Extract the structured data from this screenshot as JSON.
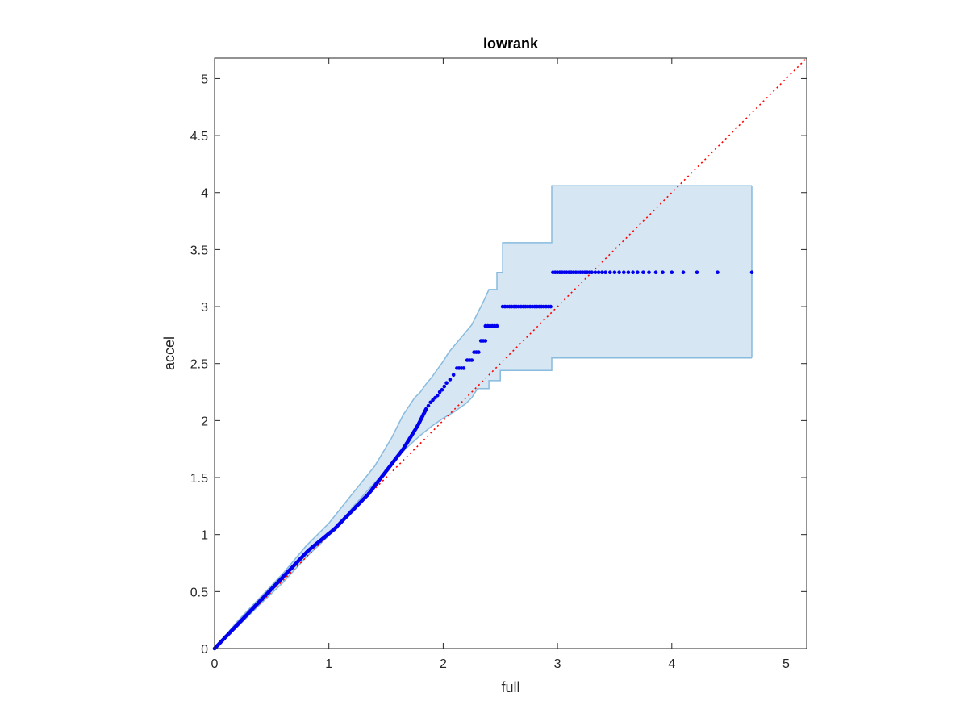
{
  "chart_data": {
    "type": "scatter",
    "title": "lowrank",
    "xlabel": "full",
    "ylabel": "accel",
    "xlim": [
      0,
      5.18
    ],
    "ylim": [
      0,
      5.18
    ],
    "xticks": [
      0,
      1,
      2,
      3,
      4,
      5
    ],
    "yticks": [
      0,
      0.5,
      1,
      1.5,
      2,
      2.5,
      3,
      3.5,
      4,
      4.5,
      5
    ],
    "xtick_labels": [
      "0",
      "1",
      "2",
      "3",
      "4",
      "5"
    ],
    "ytick_labels": [
      "0",
      "0.5",
      "1",
      "1.5",
      "2",
      "2.5",
      "3",
      "3.5",
      "4",
      "4.5",
      "5"
    ],
    "grid": false,
    "colors": {
      "points": "#0000ee",
      "band_fill": "#d6e6f3",
      "band_edge": "#88bbdd",
      "reference": "#ff0000",
      "axes": "#262626"
    },
    "series": [
      {
        "kind": "points",
        "segments": [
          {
            "from": [
              0.0,
              0.0
            ],
            "to": [
              0.82,
              0.86
            ]
          },
          {
            "from": [
              0.82,
              0.86
            ],
            "to": [
              1.05,
              1.05
            ]
          },
          {
            "from": [
              1.05,
              1.05
            ],
            "to": [
              1.35,
              1.36
            ]
          },
          {
            "from": [
              1.35,
              1.36
            ],
            "to": [
              1.65,
              1.75
            ]
          },
          {
            "from": [
              1.65,
              1.75
            ],
            "to": [
              1.78,
              1.96
            ]
          },
          {
            "from": [
              1.78,
              1.96
            ],
            "to": [
              1.85,
              2.1
            ]
          }
        ],
        "points": [
          [
            1.87,
            2.13
          ],
          [
            1.89,
            2.16
          ],
          [
            1.91,
            2.18
          ],
          [
            1.93,
            2.2
          ],
          [
            1.95,
            2.22
          ],
          [
            1.97,
            2.25
          ],
          [
            1.99,
            2.27
          ],
          [
            2.01,
            2.3
          ],
          [
            2.03,
            2.33
          ],
          [
            2.06,
            2.36
          ],
          [
            2.09,
            2.4
          ],
          [
            2.11,
            2.42
          ],
          [
            2.13,
            2.46
          ],
          [
            2.15,
            2.46
          ],
          [
            2.17,
            2.46
          ],
          [
            2.19,
            2.46
          ],
          [
            2.23,
            2.53
          ],
          [
            2.25,
            2.53
          ],
          [
            2.27,
            2.53
          ],
          [
            2.29,
            2.53
          ],
          [
            2.31,
            2.6
          ],
          [
            2.33,
            2.6
          ],
          [
            2.35,
            2.6
          ],
          [
            2.37,
            2.6
          ],
          [
            2.39,
            2.6
          ],
          [
            2.41,
            2.7
          ],
          [
            2.43,
            2.7
          ],
          [
            2.45,
            2.7
          ],
          [
            2.47,
            2.7
          ],
          [
            2.49,
            2.7
          ],
          [
            2.51,
            2.7
          ],
          [
            2.53,
            2.7
          ],
          [
            2.55,
            2.7
          ],
          [
            2.57,
            2.7
          ],
          [
            2.59,
            2.7
          ],
          [
            2.61,
            2.7
          ],
          [
            2.63,
            2.7
          ],
          [
            2.65,
            2.7
          ],
          [
            2.67,
            2.7
          ],
          [
            2.69,
            2.7
          ],
          [
            2.71,
            2.7
          ],
          [
            2.73,
            2.7
          ],
          [
            2.75,
            2.7
          ],
          [
            2.77,
            2.7
          ],
          [
            2.79,
            2.7
          ],
          [
            2.81,
            2.7
          ],
          [
            2.83,
            2.7
          ],
          [
            2.85,
            2.7
          ],
          [
            2.87,
            2.7
          ],
          [
            2.89,
            2.7
          ],
          [
            2.91,
            2.7
          ],
          [
            2.93,
            2.7
          ],
          [
            2.95,
            2.7
          ]
        ],
        "step_points": [
          {
            "y": 2.83,
            "x": [
              2.37,
              2.39,
              2.41,
              2.43,
              2.45,
              2.47
            ]
          },
          {
            "y": 3.0,
            "x": [
              2.52,
              2.54,
              2.56,
              2.58,
              2.6,
              2.62,
              2.64,
              2.66,
              2.68,
              2.7,
              2.72,
              2.74,
              2.76,
              2.78,
              2.8,
              2.82,
              2.84,
              2.86,
              2.88,
              2.9,
              2.92,
              2.94
            ]
          },
          {
            "y": 3.3,
            "x": [
              2.96,
              2.98,
              3.0,
              3.02,
              3.04,
              3.06,
              3.08,
              3.1,
              3.12,
              3.14,
              3.16,
              3.18,
              3.2,
              3.22,
              3.24,
              3.26,
              3.28,
              3.3,
              3.33,
              3.36,
              3.39,
              3.42,
              3.46,
              3.5,
              3.54,
              3.58,
              3.62,
              3.66,
              3.7,
              3.75,
              3.8,
              3.86,
              3.92,
              4.0,
              4.1,
              4.22,
              4.4,
              4.7
            ]
          }
        ]
      },
      {
        "kind": "band",
        "upper": [
          [
            0.0,
            0.0
          ],
          [
            0.2,
            0.24
          ],
          [
            0.4,
            0.45
          ],
          [
            0.6,
            0.66
          ],
          [
            0.8,
            0.9
          ],
          [
            1.0,
            1.1
          ],
          [
            1.2,
            1.35
          ],
          [
            1.4,
            1.6
          ],
          [
            1.55,
            1.85
          ],
          [
            1.65,
            2.05
          ],
          [
            1.75,
            2.2
          ],
          [
            1.8,
            2.25
          ],
          [
            1.85,
            2.32
          ],
          [
            1.9,
            2.38
          ],
          [
            1.95,
            2.45
          ],
          [
            2.0,
            2.52
          ],
          [
            2.05,
            2.6
          ],
          [
            2.1,
            2.66
          ],
          [
            2.15,
            2.72
          ],
          [
            2.2,
            2.78
          ],
          [
            2.25,
            2.84
          ],
          [
            2.3,
            2.94
          ],
          [
            2.35,
            3.04
          ],
          [
            2.4,
            3.15
          ],
          [
            2.47,
            3.15
          ],
          [
            2.47,
            3.3
          ],
          [
            2.52,
            3.3
          ],
          [
            2.52,
            3.56
          ],
          [
            2.95,
            3.56
          ],
          [
            2.95,
            4.06
          ],
          [
            4.7,
            4.06
          ]
        ],
        "lower": [
          [
            4.7,
            2.55
          ],
          [
            2.95,
            2.55
          ],
          [
            2.95,
            2.44
          ],
          [
            2.5,
            2.44
          ],
          [
            2.5,
            2.35
          ],
          [
            2.4,
            2.35
          ],
          [
            2.4,
            2.28
          ],
          [
            2.3,
            2.28
          ],
          [
            2.25,
            2.2
          ],
          [
            2.2,
            2.15
          ],
          [
            2.1,
            2.08
          ],
          [
            2.0,
            2.02
          ],
          [
            1.9,
            1.95
          ],
          [
            1.8,
            1.87
          ],
          [
            1.7,
            1.78
          ],
          [
            1.6,
            1.68
          ],
          [
            1.5,
            1.56
          ],
          [
            1.35,
            1.4
          ],
          [
            1.2,
            1.23
          ],
          [
            1.1,
            1.1
          ],
          [
            1.0,
            0.99
          ],
          [
            0.8,
            0.8
          ],
          [
            0.6,
            0.58
          ],
          [
            0.4,
            0.39
          ],
          [
            0.2,
            0.19
          ],
          [
            0.0,
            0.0
          ]
        ]
      },
      {
        "kind": "reference-line",
        "from": [
          0,
          0
        ],
        "to": [
          5.18,
          5.18
        ]
      }
    ]
  }
}
